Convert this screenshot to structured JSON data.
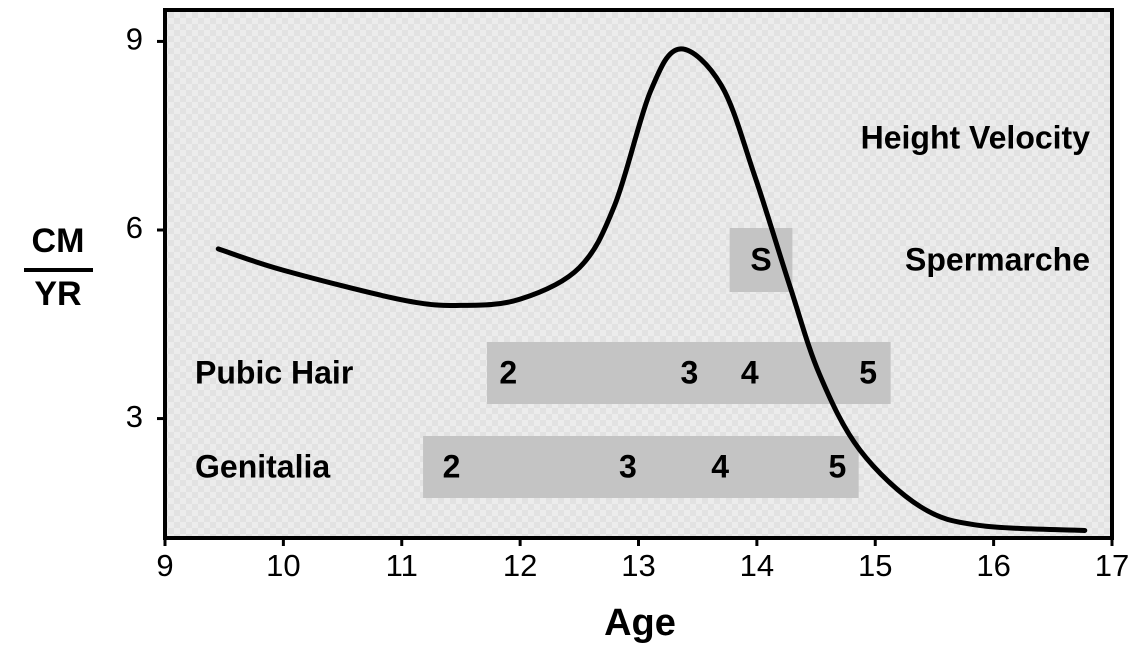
{
  "chart_data": {
    "type": "line",
    "x_label": "Age",
    "y_label": {
      "numerator": "CM",
      "denominator": "YR"
    },
    "xlim": [
      9,
      17
    ],
    "xticks": [
      9,
      10,
      11,
      12,
      13,
      14,
      15,
      16,
      17
    ],
    "ylim": [
      1.1,
      9.5
    ],
    "yticks": [
      3,
      6,
      9
    ],
    "series": [
      {
        "name": "Height Velocity",
        "color": "#000000",
        "x": [
          9.45,
          10,
          11,
          11.5,
          12,
          12.5,
          12.8,
          13.1,
          13.35,
          13.7,
          13.98,
          14.28,
          14.53,
          14.87,
          15.38,
          15.88,
          16.77
        ],
        "values": [
          5.7,
          5.36,
          4.89,
          4.8,
          4.9,
          5.4,
          6.4,
          8.2,
          8.88,
          8.3,
          6.87,
          5.1,
          3.7,
          2.5,
          1.6,
          1.3,
          1.22
        ]
      }
    ],
    "stage_bars": [
      {
        "name": "Spermarche",
        "marker": "S",
        "start": 13.77,
        "end": 14.3,
        "stages": [],
        "stage_ages": []
      },
      {
        "name": "Pubic Hair",
        "start": 11.72,
        "end": 15.13,
        "stages": [
          2,
          3,
          4,
          5
        ],
        "stage_ages": [
          11.9,
          13.43,
          13.94,
          14.94
        ]
      },
      {
        "name": "Genitalia",
        "start": 11.18,
        "end": 14.86,
        "stages": [
          2,
          3,
          4,
          5
        ],
        "stage_ages": [
          11.42,
          12.91,
          13.69,
          14.68
        ]
      }
    ],
    "bar_color": "#c4c4c4"
  }
}
